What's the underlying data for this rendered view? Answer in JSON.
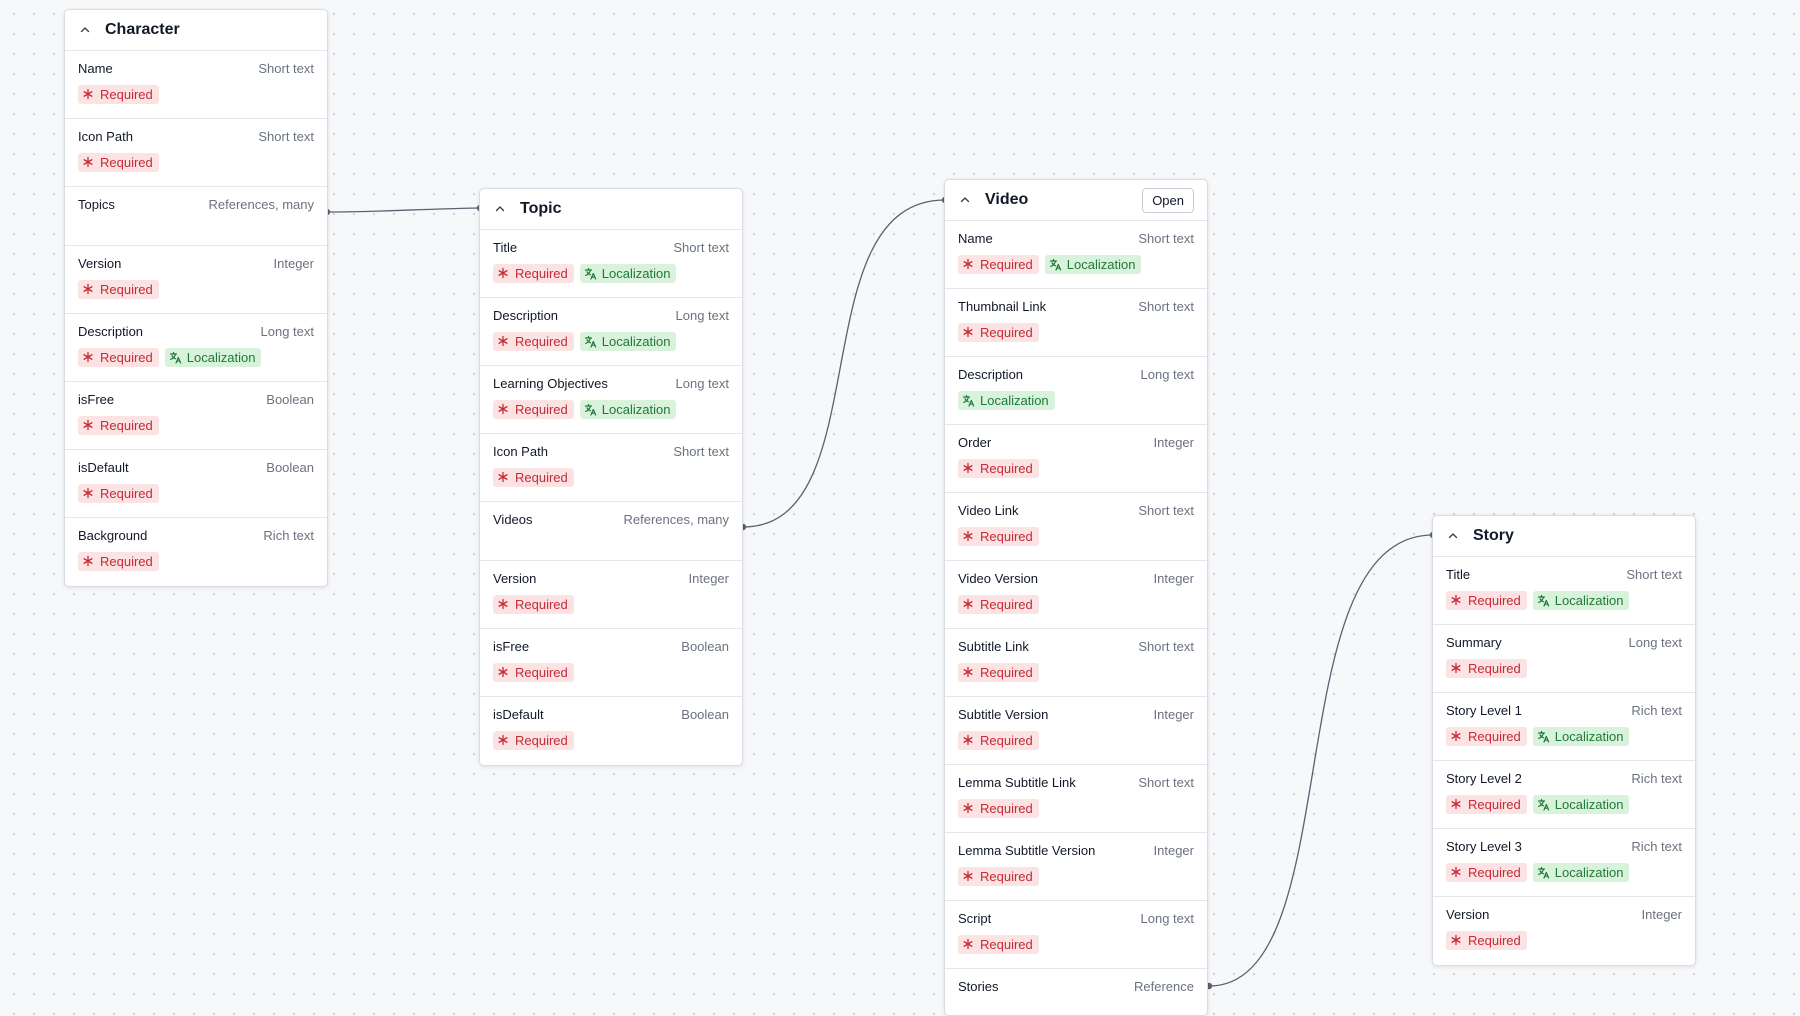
{
  "badges": {
    "required": "Required",
    "localization": "Localization"
  },
  "colors": {
    "required_bg": "#fbe2e3",
    "required_fg": "#c62a37",
    "localization_bg": "#d9f2dc",
    "localization_fg": "#1f7a37",
    "connector": "#5b6170"
  },
  "cards": {
    "character": {
      "title": "Character",
      "fields": [
        {
          "name": "Name",
          "type": "Short text",
          "badges": [
            "required"
          ]
        },
        {
          "name": "Icon Path",
          "type": "Short text",
          "badges": [
            "required"
          ]
        },
        {
          "name": "Topics",
          "type": "References, many",
          "badges": []
        },
        {
          "name": "Version",
          "type": "Integer",
          "badges": [
            "required"
          ]
        },
        {
          "name": "Description",
          "type": "Long text",
          "badges": [
            "required",
            "localization"
          ]
        },
        {
          "name": "isFree",
          "type": "Boolean",
          "badges": [
            "required"
          ]
        },
        {
          "name": "isDefault",
          "type": "Boolean",
          "badges": [
            "required"
          ]
        },
        {
          "name": "Background",
          "type": "Rich text",
          "badges": [
            "required"
          ]
        }
      ]
    },
    "topic": {
      "title": "Topic",
      "fields": [
        {
          "name": "Title",
          "type": "Short text",
          "badges": [
            "required",
            "localization"
          ]
        },
        {
          "name": "Description",
          "type": "Long text",
          "badges": [
            "required",
            "localization"
          ]
        },
        {
          "name": "Learning Objectives",
          "type": "Long text",
          "badges": [
            "required",
            "localization"
          ]
        },
        {
          "name": "Icon Path",
          "type": "Short text",
          "badges": [
            "required"
          ]
        },
        {
          "name": "Videos",
          "type": "References, many",
          "badges": []
        },
        {
          "name": "Version",
          "type": "Integer",
          "badges": [
            "required"
          ]
        },
        {
          "name": "isFree",
          "type": "Boolean",
          "badges": [
            "required"
          ]
        },
        {
          "name": "isDefault",
          "type": "Boolean",
          "badges": [
            "required"
          ]
        }
      ]
    },
    "video": {
      "title": "Video",
      "open_label": "Open",
      "fields": [
        {
          "name": "Name",
          "type": "Short text",
          "badges": [
            "required",
            "localization"
          ]
        },
        {
          "name": "Thumbnail Link",
          "type": "Short text",
          "badges": [
            "required"
          ]
        },
        {
          "name": "Description",
          "type": "Long text",
          "badges": [
            "localization"
          ]
        },
        {
          "name": "Order",
          "type": "Integer",
          "badges": [
            "required"
          ]
        },
        {
          "name": "Video Link",
          "type": "Short text",
          "badges": [
            "required"
          ]
        },
        {
          "name": "Video Version",
          "type": "Integer",
          "badges": [
            "required"
          ]
        },
        {
          "name": "Subtitle Link",
          "type": "Short text",
          "badges": [
            "required"
          ]
        },
        {
          "name": "Subtitle Version",
          "type": "Integer",
          "badges": [
            "required"
          ]
        },
        {
          "name": "Lemma Subtitle Link",
          "type": "Short text",
          "badges": [
            "required"
          ]
        },
        {
          "name": "Lemma Subtitle Version",
          "type": "Integer",
          "badges": [
            "required"
          ]
        },
        {
          "name": "Script",
          "type": "Long text",
          "badges": [
            "required"
          ]
        },
        {
          "name": "Stories",
          "type": "Reference",
          "badges": []
        }
      ]
    },
    "story": {
      "title": "Story",
      "fields": [
        {
          "name": "Title",
          "type": "Short text",
          "badges": [
            "required",
            "localization"
          ]
        },
        {
          "name": "Summary",
          "type": "Long text",
          "badges": [
            "required"
          ]
        },
        {
          "name": "Story Level 1",
          "type": "Rich text",
          "badges": [
            "required",
            "localization"
          ]
        },
        {
          "name": "Story Level 2",
          "type": "Rich text",
          "badges": [
            "required",
            "localization"
          ]
        },
        {
          "name": "Story Level 3",
          "type": "Rich text",
          "badges": [
            "required",
            "localization"
          ]
        },
        {
          "name": "Version",
          "type": "Integer",
          "badges": [
            "required"
          ]
        }
      ]
    }
  }
}
